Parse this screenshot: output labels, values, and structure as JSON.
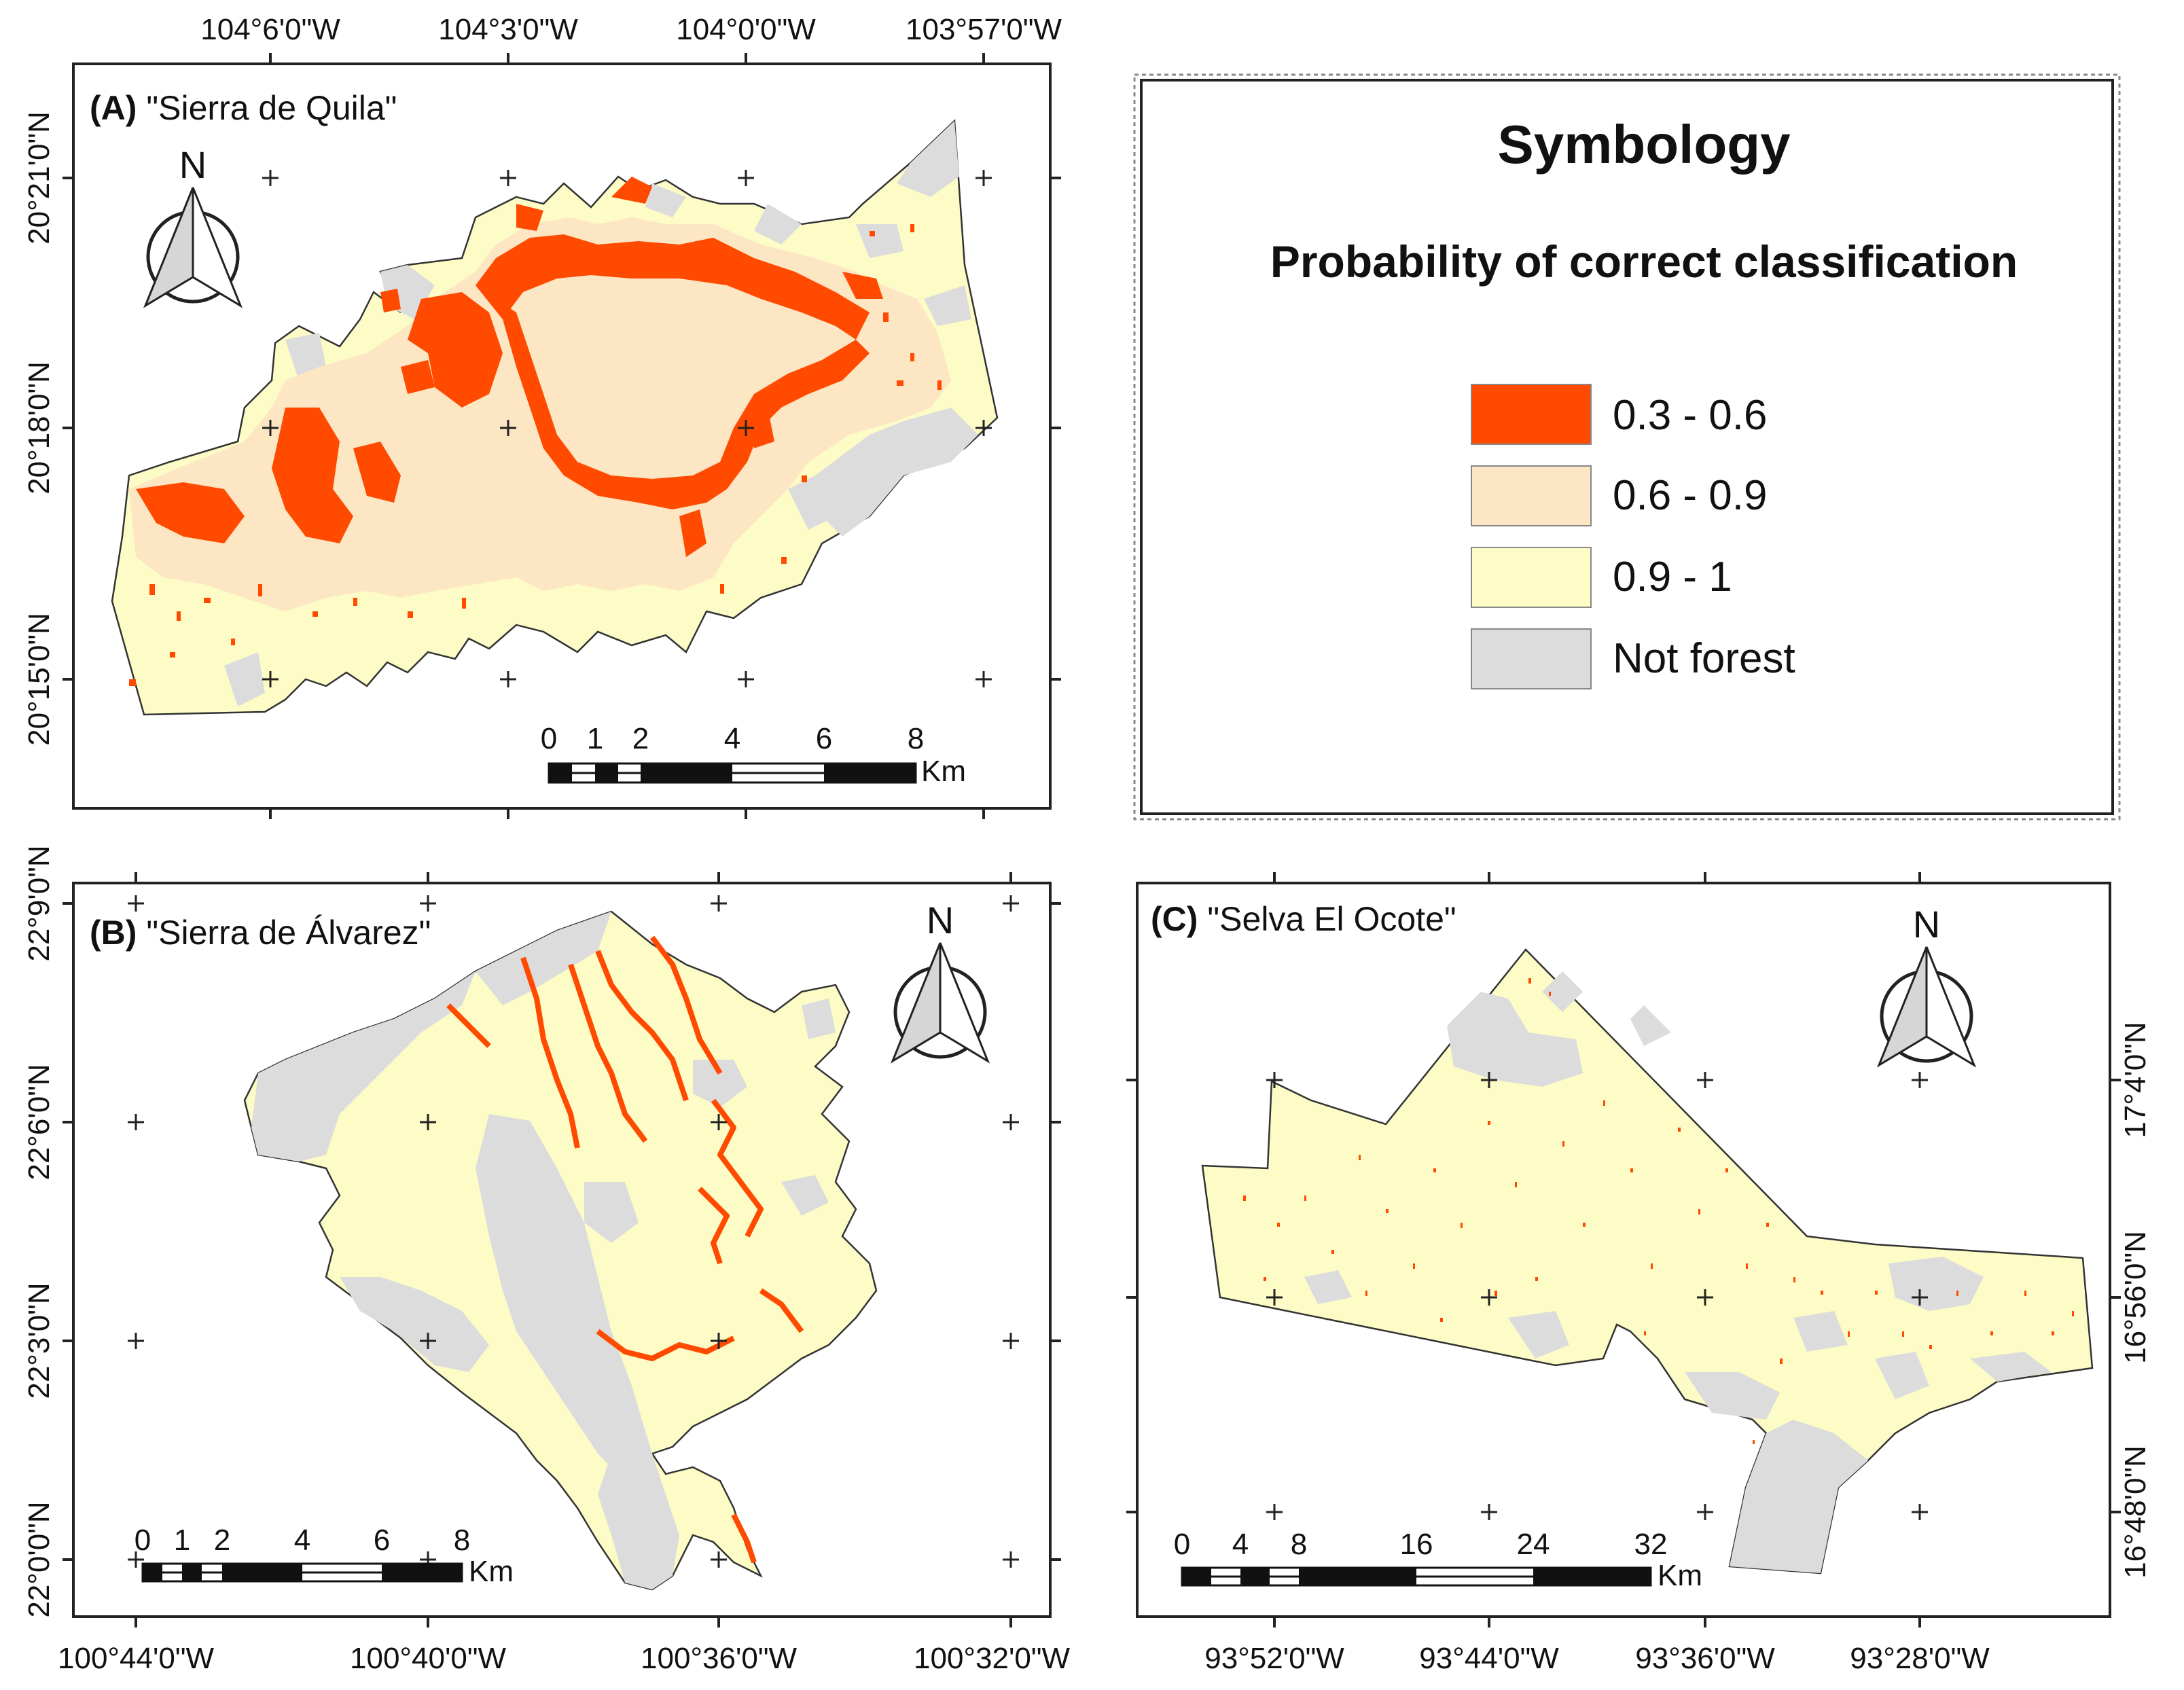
{
  "colors": {
    "prob_0_3_0_6": "#ff4a00",
    "prob_0_6_0_9": "#fde6c3",
    "prob_0_9_1": "#fdfcc6",
    "not_forest": "#dcdcdc",
    "frame": "#222222",
    "grid_cross": "#222222"
  },
  "legend": {
    "title": "Symbology",
    "subtitle": "Probability of correct classification",
    "items": [
      {
        "label": "0.3 - 0.6",
        "color": "#ff4a00"
      },
      {
        "label": "0.6 - 0.9",
        "color": "#fde6c3"
      },
      {
        "label": "0.9 - 1",
        "color": "#fdfcc6"
      },
      {
        "label": "Not forest",
        "color": "#dcdcdc"
      }
    ]
  },
  "panels": {
    "a": {
      "tag": "(A)",
      "name": "\"Sierra de Quila\"",
      "top_ticks": [
        "104°6'0\"W",
        "104°3'0\"W",
        "104°0'0\"W",
        "103°57'0\"W"
      ],
      "left_ticks": [
        "20°21'0\"N",
        "20°18'0\"N",
        "20°15'0\"N"
      ],
      "scale": {
        "ticks": [
          "0",
          "1",
          "2",
          "4",
          "6",
          "8"
        ],
        "unit": "Km"
      },
      "north": "N",
      "dominant_class": "0.6 - 0.9"
    },
    "b": {
      "tag": "(B)",
      "name": "\"Sierra de Álvarez\"",
      "bottom_ticks": [
        "100°44'0\"W",
        "100°40'0\"W",
        "100°36'0\"W",
        "100°32'0\"W"
      ],
      "left_ticks": [
        "22°9'0\"N",
        "22°6'0\"N",
        "22°3'0\"N",
        "22°0'0\"N"
      ],
      "scale": {
        "ticks": [
          "0",
          "1",
          "2",
          "4",
          "6",
          "8"
        ],
        "unit": "Km"
      },
      "north": "N",
      "dominant_class": "0.9 - 1"
    },
    "c": {
      "tag": "(C)",
      "name": "\"Selva El Ocote\"",
      "bottom_ticks": [
        "93°52'0\"W",
        "93°44'0\"W",
        "93°36'0\"W",
        "93°28'0\"W"
      ],
      "right_ticks": [
        "17°4'0\"N",
        "16°56'0\"N",
        "16°48'0\"N"
      ],
      "scale": {
        "ticks": [
          "0",
          "4",
          "8",
          "16",
          "24",
          "32"
        ],
        "unit": "Km"
      },
      "north": "N",
      "dominant_class": "0.9 - 1"
    }
  }
}
